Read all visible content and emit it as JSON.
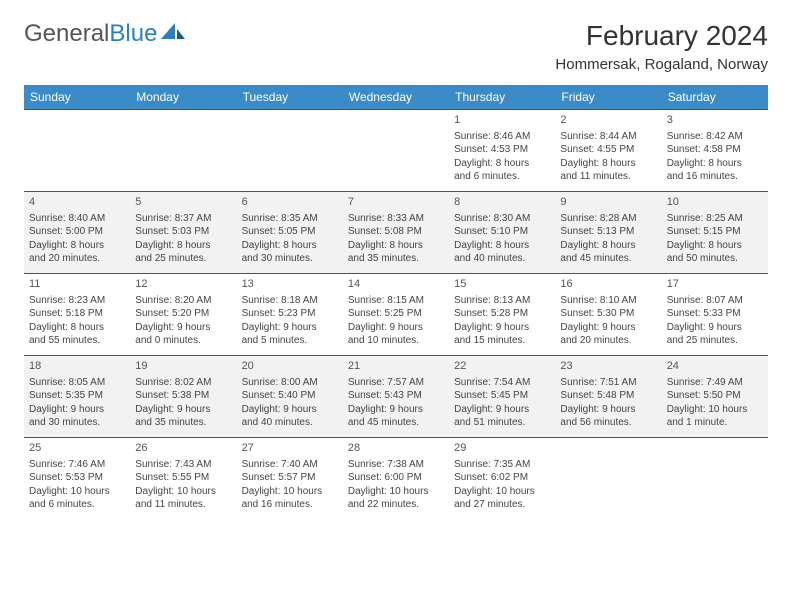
{
  "logo": {
    "part1": "General",
    "part2": "Blue"
  },
  "title": "February 2024",
  "location": "Hommersak, Rogaland, Norway",
  "colors": {
    "header_bg": "#3b8bc9",
    "header_text": "#ffffff",
    "row_border": "#2a5a8a",
    "shade_bg": "#f2f2f2",
    "body_text": "#444444",
    "logo_blue": "#2a7fbf"
  },
  "typography": {
    "title_fontsize": 28,
    "location_fontsize": 15,
    "dayhead_fontsize": 12,
    "cell_fontsize": 10,
    "font_family": "Arial"
  },
  "dayHeaders": [
    "Sunday",
    "Monday",
    "Tuesday",
    "Wednesday",
    "Thursday",
    "Friday",
    "Saturday"
  ],
  "weeks": [
    [
      null,
      null,
      null,
      null,
      {
        "n": "1",
        "sr": "Sunrise: 8:46 AM",
        "ss": "Sunset: 4:53 PM",
        "d1": "Daylight: 8 hours",
        "d2": "and 6 minutes."
      },
      {
        "n": "2",
        "sr": "Sunrise: 8:44 AM",
        "ss": "Sunset: 4:55 PM",
        "d1": "Daylight: 8 hours",
        "d2": "and 11 minutes."
      },
      {
        "n": "3",
        "sr": "Sunrise: 8:42 AM",
        "ss": "Sunset: 4:58 PM",
        "d1": "Daylight: 8 hours",
        "d2": "and 16 minutes."
      }
    ],
    [
      {
        "n": "4",
        "sr": "Sunrise: 8:40 AM",
        "ss": "Sunset: 5:00 PM",
        "d1": "Daylight: 8 hours",
        "d2": "and 20 minutes."
      },
      {
        "n": "5",
        "sr": "Sunrise: 8:37 AM",
        "ss": "Sunset: 5:03 PM",
        "d1": "Daylight: 8 hours",
        "d2": "and 25 minutes."
      },
      {
        "n": "6",
        "sr": "Sunrise: 8:35 AM",
        "ss": "Sunset: 5:05 PM",
        "d1": "Daylight: 8 hours",
        "d2": "and 30 minutes."
      },
      {
        "n": "7",
        "sr": "Sunrise: 8:33 AM",
        "ss": "Sunset: 5:08 PM",
        "d1": "Daylight: 8 hours",
        "d2": "and 35 minutes."
      },
      {
        "n": "8",
        "sr": "Sunrise: 8:30 AM",
        "ss": "Sunset: 5:10 PM",
        "d1": "Daylight: 8 hours",
        "d2": "and 40 minutes."
      },
      {
        "n": "9",
        "sr": "Sunrise: 8:28 AM",
        "ss": "Sunset: 5:13 PM",
        "d1": "Daylight: 8 hours",
        "d2": "and 45 minutes."
      },
      {
        "n": "10",
        "sr": "Sunrise: 8:25 AM",
        "ss": "Sunset: 5:15 PM",
        "d1": "Daylight: 8 hours",
        "d2": "and 50 minutes."
      }
    ],
    [
      {
        "n": "11",
        "sr": "Sunrise: 8:23 AM",
        "ss": "Sunset: 5:18 PM",
        "d1": "Daylight: 8 hours",
        "d2": "and 55 minutes."
      },
      {
        "n": "12",
        "sr": "Sunrise: 8:20 AM",
        "ss": "Sunset: 5:20 PM",
        "d1": "Daylight: 9 hours",
        "d2": "and 0 minutes."
      },
      {
        "n": "13",
        "sr": "Sunrise: 8:18 AM",
        "ss": "Sunset: 5:23 PM",
        "d1": "Daylight: 9 hours",
        "d2": "and 5 minutes."
      },
      {
        "n": "14",
        "sr": "Sunrise: 8:15 AM",
        "ss": "Sunset: 5:25 PM",
        "d1": "Daylight: 9 hours",
        "d2": "and 10 minutes."
      },
      {
        "n": "15",
        "sr": "Sunrise: 8:13 AM",
        "ss": "Sunset: 5:28 PM",
        "d1": "Daylight: 9 hours",
        "d2": "and 15 minutes."
      },
      {
        "n": "16",
        "sr": "Sunrise: 8:10 AM",
        "ss": "Sunset: 5:30 PM",
        "d1": "Daylight: 9 hours",
        "d2": "and 20 minutes."
      },
      {
        "n": "17",
        "sr": "Sunrise: 8:07 AM",
        "ss": "Sunset: 5:33 PM",
        "d1": "Daylight: 9 hours",
        "d2": "and 25 minutes."
      }
    ],
    [
      {
        "n": "18",
        "sr": "Sunrise: 8:05 AM",
        "ss": "Sunset: 5:35 PM",
        "d1": "Daylight: 9 hours",
        "d2": "and 30 minutes."
      },
      {
        "n": "19",
        "sr": "Sunrise: 8:02 AM",
        "ss": "Sunset: 5:38 PM",
        "d1": "Daylight: 9 hours",
        "d2": "and 35 minutes."
      },
      {
        "n": "20",
        "sr": "Sunrise: 8:00 AM",
        "ss": "Sunset: 5:40 PM",
        "d1": "Daylight: 9 hours",
        "d2": "and 40 minutes."
      },
      {
        "n": "21",
        "sr": "Sunrise: 7:57 AM",
        "ss": "Sunset: 5:43 PM",
        "d1": "Daylight: 9 hours",
        "d2": "and 45 minutes."
      },
      {
        "n": "22",
        "sr": "Sunrise: 7:54 AM",
        "ss": "Sunset: 5:45 PM",
        "d1": "Daylight: 9 hours",
        "d2": "and 51 minutes."
      },
      {
        "n": "23",
        "sr": "Sunrise: 7:51 AM",
        "ss": "Sunset: 5:48 PM",
        "d1": "Daylight: 9 hours",
        "d2": "and 56 minutes."
      },
      {
        "n": "24",
        "sr": "Sunrise: 7:49 AM",
        "ss": "Sunset: 5:50 PM",
        "d1": "Daylight: 10 hours",
        "d2": "and 1 minute."
      }
    ],
    [
      {
        "n": "25",
        "sr": "Sunrise: 7:46 AM",
        "ss": "Sunset: 5:53 PM",
        "d1": "Daylight: 10 hours",
        "d2": "and 6 minutes."
      },
      {
        "n": "26",
        "sr": "Sunrise: 7:43 AM",
        "ss": "Sunset: 5:55 PM",
        "d1": "Daylight: 10 hours",
        "d2": "and 11 minutes."
      },
      {
        "n": "27",
        "sr": "Sunrise: 7:40 AM",
        "ss": "Sunset: 5:57 PM",
        "d1": "Daylight: 10 hours",
        "d2": "and 16 minutes."
      },
      {
        "n": "28",
        "sr": "Sunrise: 7:38 AM",
        "ss": "Sunset: 6:00 PM",
        "d1": "Daylight: 10 hours",
        "d2": "and 22 minutes."
      },
      {
        "n": "29",
        "sr": "Sunrise: 7:35 AM",
        "ss": "Sunset: 6:02 PM",
        "d1": "Daylight: 10 hours",
        "d2": "and 27 minutes."
      },
      null,
      null
    ]
  ]
}
